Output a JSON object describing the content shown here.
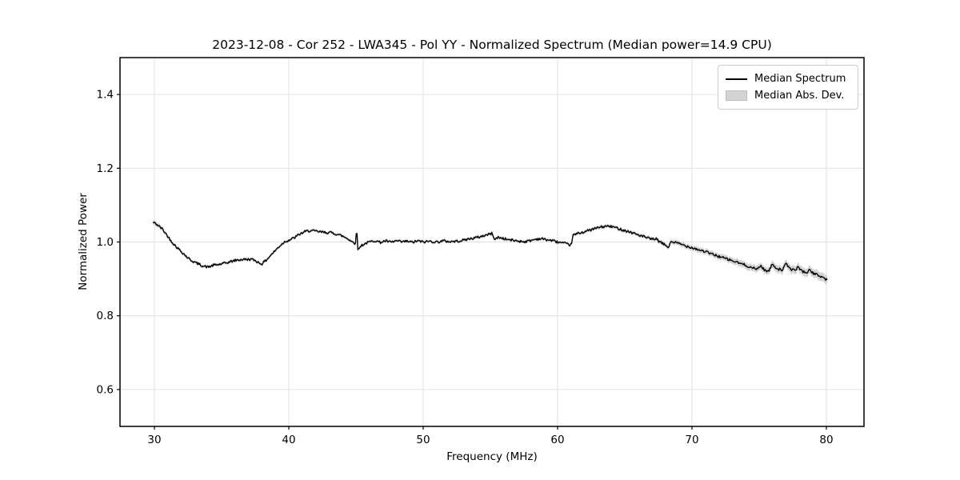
{
  "chart_data": {
    "type": "line",
    "title": "2023-12-08 - Cor 252 - LWA345 - Pol YY - Normalized Spectrum (Median power=14.9 CPU)",
    "xlabel": "Frequency (MHz)",
    "ylabel": "Normalized Power",
    "xlim": [
      27.44,
      82.8
    ],
    "ylim": [
      0.5,
      1.5
    ],
    "xticks": {
      "values": [
        30,
        40,
        50,
        60,
        70,
        80
      ],
      "labels": [
        "30",
        "40",
        "50",
        "60",
        "70",
        "80"
      ]
    },
    "yticks": {
      "values": [
        0.6,
        0.8,
        1.0,
        1.2,
        1.4
      ],
      "labels": [
        "0.6",
        "0.8",
        "1.0",
        "1.2",
        "1.4"
      ]
    },
    "grid": true,
    "legend": {
      "position": "upper right",
      "entries": [
        {
          "label": "Median Spectrum",
          "type": "line"
        },
        {
          "label": "Median Abs. Dev.",
          "type": "patch"
        }
      ]
    },
    "colors": {
      "line": "#000000",
      "band": "#d3d3d3",
      "band_edge": "#bdbdbd",
      "grid": "#e0e0e0",
      "frame": "#000000",
      "legend_border": "#cccccc"
    },
    "series": [
      {
        "name": "Median Spectrum",
        "points": [
          [
            29.9,
            1.053
          ],
          [
            30.1,
            1.05
          ],
          [
            30.3,
            1.044
          ],
          [
            30.6,
            1.035
          ],
          [
            30.9,
            1.02
          ],
          [
            31.2,
            1.005
          ],
          [
            31.5,
            0.992
          ],
          [
            31.8,
            0.981
          ],
          [
            32.1,
            0.971
          ],
          [
            32.4,
            0.96
          ],
          [
            32.7,
            0.951
          ],
          [
            33.0,
            0.945
          ],
          [
            33.3,
            0.94
          ],
          [
            33.7,
            0.934
          ],
          [
            34.0,
            0.932
          ],
          [
            34.4,
            0.937
          ],
          [
            34.8,
            0.939
          ],
          [
            35.2,
            0.942
          ],
          [
            35.6,
            0.946
          ],
          [
            36.0,
            0.95
          ],
          [
            36.4,
            0.952
          ],
          [
            36.8,
            0.953
          ],
          [
            37.2,
            0.953
          ],
          [
            37.5,
            0.95
          ],
          [
            37.8,
            0.943
          ],
          [
            38.0,
            0.941
          ],
          [
            38.3,
            0.95
          ],
          [
            38.6,
            0.962
          ],
          [
            39.0,
            0.977
          ],
          [
            39.4,
            0.992
          ],
          [
            39.7,
            1.001
          ],
          [
            40.0,
            1.005
          ],
          [
            40.4,
            1.011
          ],
          [
            40.8,
            1.021
          ],
          [
            41.2,
            1.028
          ],
          [
            41.6,
            1.031
          ],
          [
            42.0,
            1.029
          ],
          [
            42.4,
            1.027
          ],
          [
            42.8,
            1.026
          ],
          [
            43.2,
            1.025
          ],
          [
            43.6,
            1.021
          ],
          [
            44.0,
            1.016
          ],
          [
            44.4,
            1.009
          ],
          [
            44.7,
            1.001
          ],
          [
            44.95,
            0.995
          ],
          [
            45.05,
            1.038
          ],
          [
            45.15,
            0.976
          ],
          [
            45.35,
            0.99
          ],
          [
            45.7,
            0.996
          ],
          [
            46.0,
            1.0
          ],
          [
            46.4,
            1.004
          ],
          [
            46.8,
            0.999
          ],
          [
            47.2,
            1.003
          ],
          [
            47.6,
            0.999
          ],
          [
            48.0,
            1.003
          ],
          [
            48.4,
            1.0
          ],
          [
            48.8,
            1.002
          ],
          [
            49.2,
            0.999
          ],
          [
            49.6,
            1.003
          ],
          [
            50.0,
            1.0
          ],
          [
            50.5,
            1.002
          ],
          [
            51.0,
            1.0
          ],
          [
            51.5,
            1.003
          ],
          [
            52.0,
            1.001
          ],
          [
            52.5,
            1.002
          ],
          [
            53.0,
            1.005
          ],
          [
            53.5,
            1.009
          ],
          [
            54.0,
            1.012
          ],
          [
            54.4,
            1.016
          ],
          [
            54.8,
            1.02
          ],
          [
            55.1,
            1.023
          ],
          [
            55.35,
            1.007
          ],
          [
            55.6,
            1.013
          ],
          [
            56.0,
            1.009
          ],
          [
            56.4,
            1.006
          ],
          [
            56.8,
            1.004
          ],
          [
            57.2,
            1.002
          ],
          [
            57.6,
            1.001
          ],
          [
            58.0,
            1.004
          ],
          [
            58.4,
            1.008
          ],
          [
            58.8,
            1.009
          ],
          [
            59.2,
            1.006
          ],
          [
            59.6,
            1.004
          ],
          [
            60.0,
            1.0
          ],
          [
            60.4,
            0.997
          ],
          [
            60.8,
            0.993
          ],
          [
            61.0,
            0.992
          ],
          [
            61.15,
            1.018
          ],
          [
            61.5,
            1.023
          ],
          [
            62.0,
            1.028
          ],
          [
            62.5,
            1.033
          ],
          [
            63.0,
            1.039
          ],
          [
            63.5,
            1.042
          ],
          [
            63.8,
            1.043
          ],
          [
            64.2,
            1.04
          ],
          [
            64.6,
            1.036
          ],
          [
            65.0,
            1.031
          ],
          [
            65.4,
            1.027
          ],
          [
            65.8,
            1.022
          ],
          [
            66.2,
            1.017
          ],
          [
            66.6,
            1.012
          ],
          [
            67.0,
            1.007
          ],
          [
            67.3,
            1.009
          ],
          [
            67.6,
            1.0
          ],
          [
            68.0,
            0.992
          ],
          [
            68.3,
            0.985
          ],
          [
            68.4,
            1.002
          ],
          [
            68.7,
            0.999
          ],
          [
            69.0,
            0.996
          ],
          [
            69.5,
            0.99
          ],
          [
            70.0,
            0.985
          ],
          [
            70.5,
            0.979
          ],
          [
            71.0,
            0.974
          ],
          [
            71.5,
            0.967
          ],
          [
            72.0,
            0.961
          ],
          [
            72.5,
            0.955
          ],
          [
            73.0,
            0.949
          ],
          [
            73.5,
            0.943
          ],
          [
            74.0,
            0.937
          ],
          [
            74.4,
            0.931
          ],
          [
            74.8,
            0.926
          ],
          [
            75.1,
            0.936
          ],
          [
            75.4,
            0.924
          ],
          [
            75.7,
            0.92
          ],
          [
            76.0,
            0.941
          ],
          [
            76.3,
            0.928
          ],
          [
            76.7,
            0.924
          ],
          [
            77.0,
            0.94
          ],
          [
            77.3,
            0.928
          ],
          [
            77.6,
            0.923
          ],
          [
            77.9,
            0.932
          ],
          [
            78.2,
            0.921
          ],
          [
            78.5,
            0.917
          ],
          [
            78.8,
            0.924
          ],
          [
            79.1,
            0.913
          ],
          [
            79.4,
            0.91
          ],
          [
            79.7,
            0.905
          ],
          [
            80.0,
            0.898
          ],
          [
            80.1,
            0.895
          ]
        ]
      },
      {
        "name": "Median Abs. Dev.",
        "half_width_points": [
          [
            29.9,
            0.007
          ],
          [
            31.0,
            0.005
          ],
          [
            33.0,
            0.004
          ],
          [
            36.0,
            0.004
          ],
          [
            40.0,
            0.004
          ],
          [
            45.0,
            0.004
          ],
          [
            50.0,
            0.004
          ],
          [
            55.0,
            0.004
          ],
          [
            60.0,
            0.004
          ],
          [
            63.0,
            0.005
          ],
          [
            66.0,
            0.005
          ],
          [
            68.0,
            0.006
          ],
          [
            70.0,
            0.007
          ],
          [
            72.0,
            0.008
          ],
          [
            74.0,
            0.009
          ],
          [
            76.0,
            0.01
          ],
          [
            78.0,
            0.011
          ],
          [
            80.1,
            0.012
          ]
        ]
      }
    ],
    "render": {
      "step_mhz": 0.06,
      "jitter": 0.0035,
      "seed": 42
    }
  }
}
